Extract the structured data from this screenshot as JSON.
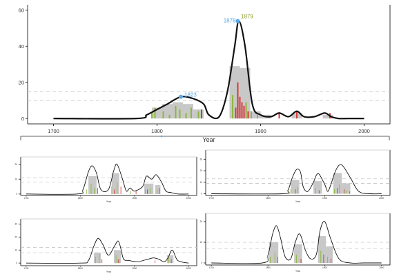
{
  "chart_data": [
    {
      "type": "area",
      "title": "",
      "xlabel": "Year",
      "ylabel": "",
      "xlim": [
        1675,
        2025
      ],
      "ylim": [
        -3,
        63
      ],
      "xticks": [
        1700,
        1800,
        1900,
        2000
      ],
      "yticks": [
        0,
        20,
        40,
        60
      ],
      "dashed_lines": [
        10,
        15
      ],
      "colors": {
        "curve": "#111111",
        "bars_gray": "#c8c8c8",
        "green": "#8cb83a",
        "red": "#d43a3a",
        "peak_label_blue": "#5aa9e6",
        "peak_label_olive": "#8aa030"
      },
      "curve": {
        "x": [
          1700,
          1780,
          1790,
          1800,
          1810,
          1823,
          1835,
          1845,
          1850,
          1860,
          1868,
          1875,
          1879,
          1885,
          1892,
          1900,
          1910,
          1918,
          1927,
          1935,
          1942,
          1952,
          1962,
          1968,
          1975,
          1985,
          2000
        ],
        "y": [
          0,
          0,
          2,
          5,
          8,
          12,
          11,
          8,
          2,
          1,
          15,
          40,
          54,
          40,
          8,
          2,
          1,
          3,
          1,
          4,
          1,
          1,
          3,
          1,
          0,
          0,
          0
        ]
      },
      "gray_bars": [
        {
          "x0": 1795,
          "x1": 1805,
          "value": 6
        },
        {
          "x0": 1805,
          "x1": 1815,
          "value": 8
        },
        {
          "x0": 1815,
          "x1": 1825,
          "value": 9
        },
        {
          "x0": 1825,
          "x1": 1835,
          "value": 8
        },
        {
          "x0": 1835,
          "x1": 1845,
          "value": 5
        },
        {
          "x0": 1870,
          "x1": 1880,
          "value": 29
        },
        {
          "x0": 1880,
          "x1": 1890,
          "value": 28
        },
        {
          "x0": 1890,
          "x1": 1900,
          "value": 4
        },
        {
          "x0": 1900,
          "x1": 1910,
          "value": 2
        },
        {
          "x0": 1930,
          "x1": 1940,
          "value": 3
        },
        {
          "x0": 1960,
          "x1": 1970,
          "value": 2
        }
      ],
      "green_spikes": [
        {
          "x": 1795,
          "value": 3
        },
        {
          "x": 1798,
          "value": 6
        },
        {
          "x": 1806,
          "value": 4
        },
        {
          "x": 1812,
          "value": 2
        },
        {
          "x": 1818,
          "value": 7
        },
        {
          "x": 1822,
          "value": 5
        },
        {
          "x": 1828,
          "value": 3
        },
        {
          "x": 1833,
          "value": 6
        },
        {
          "x": 1840,
          "value": 4
        },
        {
          "x": 1873,
          "value": 13
        },
        {
          "x": 1886,
          "value": 9
        },
        {
          "x": 1891,
          "value": 4
        },
        {
          "x": 1897,
          "value": 2
        }
      ],
      "red_spikes": [
        {
          "x": 1843,
          "value": 5
        },
        {
          "x": 1876,
          "value": 6
        },
        {
          "x": 1878,
          "value": 20
        },
        {
          "x": 1880,
          "value": 12
        },
        {
          "x": 1882,
          "value": 9
        },
        {
          "x": 1884,
          "value": 7
        },
        {
          "x": 1888,
          "value": 4
        },
        {
          "x": 1918,
          "value": 3
        },
        {
          "x": 1935,
          "value": 4
        },
        {
          "x": 1967,
          "value": 3
        }
      ],
      "peak_labels": [
        {
          "x": 1823,
          "y": 12,
          "text": "1823",
          "color": "blue"
        },
        {
          "x": 1878,
          "y": 54,
          "text": "1878",
          "color": "blue"
        },
        {
          "x": 1879,
          "y": 54,
          "text": "1879",
          "color": "olive"
        }
      ]
    },
    {
      "type": "area",
      "title": "",
      "xlabel": "Year",
      "ylabel": "",
      "xlim": [
        1690,
        2015
      ],
      "ylim": [
        -1,
        25
      ],
      "xticks": [
        1700,
        1800,
        1900,
        2000
      ],
      "yticks": [
        0,
        10,
        20
      ],
      "dashed_lines": [
        8,
        11
      ],
      "curve": {
        "x": [
          1700,
          1795,
          1805,
          1815,
          1822,
          1830,
          1838,
          1852,
          1862,
          1868,
          1878,
          1885,
          1892,
          1900,
          1915,
          1922,
          1932,
          1940,
          1950,
          1958,
          1967,
          1980,
          2000
        ],
        "y": [
          0,
          0,
          3,
          15,
          19,
          14,
          3,
          3,
          16,
          20,
          10,
          2,
          4,
          2,
          5,
          12,
          10,
          13,
          8,
          2,
          1,
          0,
          0
        ]
      },
      "gray_bars": [
        {
          "x0": 1815,
          "x1": 1830,
          "value": 12
        },
        {
          "x0": 1858,
          "x1": 1872,
          "value": 14
        },
        {
          "x0": 1918,
          "x1": 1935,
          "value": 7
        },
        {
          "x0": 1938,
          "x1": 1948,
          "value": 6
        }
      ],
      "green_spikes": [
        {
          "x": 1812,
          "value": 3
        },
        {
          "x": 1820,
          "value": 7
        },
        {
          "x": 1826,
          "value": 4
        },
        {
          "x": 1858,
          "value": 5
        },
        {
          "x": 1868,
          "value": 8
        },
        {
          "x": 1893,
          "value": 2
        },
        {
          "x": 1920,
          "value": 3
        },
        {
          "x": 1929,
          "value": 4
        },
        {
          "x": 1942,
          "value": 3
        }
      ],
      "red_spikes": [
        {
          "x": 1832,
          "value": 4
        },
        {
          "x": 1863,
          "value": 3
        },
        {
          "x": 1875,
          "value": 5
        },
        {
          "x": 1903,
          "value": 2
        },
        {
          "x": 1924,
          "value": 3
        },
        {
          "x": 1946,
          "value": 4
        }
      ],
      "peak_labels": []
    },
    {
      "type": "area",
      "title": "",
      "xlabel": "Year",
      "ylabel": "",
      "xlim": [
        1690,
        2015
      ],
      "ylim": [
        -1.5,
        38
      ],
      "xticks": [
        1700,
        1800,
        1900,
        2000
      ],
      "yticks": [
        0,
        10,
        20,
        30
      ],
      "dashed_lines": [
        9,
        13
      ],
      "curve": {
        "x": [
          1700,
          1825,
          1835,
          1842,
          1850,
          1857,
          1862,
          1870,
          1880,
          1885,
          1890,
          1900,
          1905,
          1910,
          1920,
          1930,
          1945,
          1960,
          1980,
          2000
        ],
        "y": [
          0,
          0,
          3,
          13,
          21,
          19,
          6,
          2,
          10,
          16,
          17,
          8,
          2,
          7,
          21,
          25,
          14,
          2,
          0,
          0
        ]
      },
      "gray_bars": [
        {
          "x0": 1840,
          "x1": 1855,
          "value": 12
        },
        {
          "x0": 1880,
          "x1": 1895,
          "value": 11
        },
        {
          "x0": 1915,
          "x1": 1930,
          "value": 18
        },
        {
          "x0": 1930,
          "x1": 1945,
          "value": 9
        }
      ],
      "green_spikes": [
        {
          "x": 1840,
          "value": 4
        },
        {
          "x": 1852,
          "value": 6
        },
        {
          "x": 1884,
          "value": 5
        },
        {
          "x": 1917,
          "value": 4
        },
        {
          "x": 1926,
          "value": 8
        },
        {
          "x": 1938,
          "value": 3
        }
      ],
      "red_spikes": [
        {
          "x": 1848,
          "value": 4
        },
        {
          "x": 1890,
          "value": 3
        },
        {
          "x": 1922,
          "value": 5
        },
        {
          "x": 1934,
          "value": 4
        },
        {
          "x": 1944,
          "value": 2
        }
      ],
      "peak_labels": []
    },
    {
      "type": "area",
      "title": "",
      "xlabel": "Year",
      "ylabel": "",
      "xlim": [
        1690,
        2015
      ],
      "ylim": [
        -2,
        34
      ],
      "xticks": [
        1700,
        1800,
        1900,
        2000
      ],
      "yticks": [
        0,
        10,
        20,
        30
      ],
      "dashed_lines": [
        8,
        12
      ],
      "curve": {
        "x": [
          1700,
          1800,
          1815,
          1825,
          1833,
          1842,
          1852,
          1863,
          1870,
          1875,
          1880,
          1890,
          1905,
          1925,
          1935,
          1945,
          1955,
          1962,
          1970,
          1980,
          2000
        ],
        "y": [
          0,
          0,
          2,
          13,
          19,
          14,
          6,
          13,
          17,
          11,
          3,
          2,
          1,
          3,
          4,
          3,
          1,
          4,
          10,
          2,
          0
        ]
      },
      "gray_bars": [
        {
          "x0": 1825,
          "x1": 1838,
          "value": 8
        },
        {
          "x0": 1862,
          "x1": 1875,
          "value": 10
        },
        {
          "x0": 1960,
          "x1": 1972,
          "value": 6
        }
      ],
      "green_spikes": [
        {
          "x": 1828,
          "value": 5
        },
        {
          "x": 1835,
          "value": 7
        },
        {
          "x": 1866,
          "value": 6
        },
        {
          "x": 1872,
          "value": 3
        },
        {
          "x": 1963,
          "value": 4
        }
      ],
      "red_spikes": [
        {
          "x": 1840,
          "value": 3
        },
        {
          "x": 1870,
          "value": 3
        },
        {
          "x": 1938,
          "value": 2
        },
        {
          "x": 1968,
          "value": 3
        }
      ],
      "peak_labels": []
    },
    {
      "type": "area",
      "title": "",
      "xlabel": "Year",
      "ylabel": "",
      "xlim": [
        1690,
        2015
      ],
      "ylim": [
        -1,
        24
      ],
      "xticks": [
        1700,
        1800,
        1900,
        2000
      ],
      "yticks": [
        0,
        10,
        20
      ],
      "dashed_lines": [
        7,
        10
      ],
      "curve": {
        "x": [
          1700,
          1790,
          1800,
          1808,
          1815,
          1822,
          1830,
          1840,
          1848,
          1856,
          1866,
          1875,
          1885,
          1892,
          1900,
          1910,
          1925,
          1945,
          1970,
          2000
        ],
        "y": [
          0,
          0,
          4,
          14,
          18,
          12,
          3,
          2,
          10,
          14,
          6,
          2,
          4,
          16,
          20,
          12,
          2,
          0,
          0,
          0
        ]
      },
      "gray_bars": [
        {
          "x0": 1802,
          "x1": 1818,
          "value": 10
        },
        {
          "x0": 1846,
          "x1": 1860,
          "value": 9
        },
        {
          "x0": 1888,
          "x1": 1902,
          "value": 13
        },
        {
          "x0": 1902,
          "x1": 1914,
          "value": 8
        }
      ],
      "green_spikes": [
        {
          "x": 1804,
          "value": 3
        },
        {
          "x": 1812,
          "value": 5
        },
        {
          "x": 1850,
          "value": 4
        },
        {
          "x": 1893,
          "value": 6
        },
        {
          "x": 1905,
          "value": 3
        }
      ],
      "red_spikes": [
        {
          "x": 1817,
          "value": 3
        },
        {
          "x": 1858,
          "value": 2
        },
        {
          "x": 1898,
          "value": 4
        },
        {
          "x": 1911,
          "value": 2
        }
      ],
      "peak_labels": []
    }
  ]
}
